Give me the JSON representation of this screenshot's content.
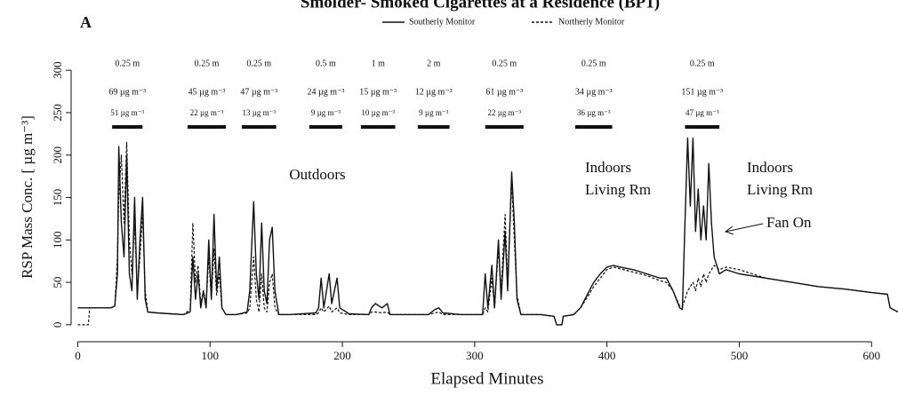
{
  "chart_data": {
    "type": "line",
    "title": "Smolder- Smoked Cigarettes at a Residence (BP1)",
    "panel_label": "A",
    "xlabel": "Elapsed Minutes",
    "ylabel": "RSP Mass Conc. [ µg m⁻³]",
    "xlim": [
      -5,
      620
    ],
    "ylim": [
      -20,
      320
    ],
    "xticks": [
      0,
      100,
      200,
      300,
      400,
      500,
      600
    ],
    "yticks": [
      0,
      50,
      100,
      150,
      200,
      250,
      300
    ],
    "legend": "top",
    "x": [
      0,
      8,
      9,
      25,
      28,
      30,
      31,
      33,
      35,
      37,
      39,
      41,
      43,
      45,
      47,
      49,
      51,
      53,
      60,
      70,
      80,
      85,
      87,
      89,
      91,
      93,
      95,
      97,
      99,
      101,
      103,
      105,
      107,
      109,
      112,
      120,
      128,
      130,
      133,
      135,
      137,
      139,
      141,
      143,
      145,
      147,
      149,
      152,
      160,
      180,
      182,
      184,
      186,
      190,
      192,
      196,
      198,
      205,
      220,
      222,
      225,
      230,
      234,
      236,
      250,
      265,
      270,
      273,
      276,
      290,
      306,
      308,
      310,
      313,
      315,
      318,
      320,
      323,
      325,
      328,
      330,
      332,
      335,
      350,
      360,
      362,
      366,
      367,
      375,
      380,
      385,
      390,
      395,
      400,
      405,
      410,
      420,
      430,
      440,
      445,
      450,
      455,
      457,
      459,
      461,
      463,
      465,
      467,
      469,
      471,
      473,
      475,
      477,
      479,
      481,
      485,
      490,
      500,
      520,
      540,
      560,
      580,
      600,
      612,
      614,
      620
    ],
    "series": [
      {
        "name": "Southerly Monitor",
        "color": "#111111",
        "line_style": "solid",
        "values": [
          20,
          20,
          20,
          20,
          22,
          60,
          210,
          120,
          80,
          200,
          60,
          40,
          150,
          30,
          100,
          150,
          30,
          15,
          14,
          13,
          12,
          15,
          80,
          30,
          60,
          20,
          40,
          20,
          100,
          30,
          130,
          40,
          80,
          20,
          12,
          12,
          15,
          40,
          145,
          60,
          30,
          120,
          40,
          25,
          100,
          115,
          40,
          12,
          12,
          14,
          20,
          55,
          20,
          60,
          25,
          55,
          20,
          13,
          12,
          20,
          25,
          20,
          25,
          12,
          12,
          12,
          18,
          20,
          14,
          12,
          12,
          60,
          20,
          70,
          20,
          100,
          30,
          110,
          40,
          180,
          120,
          30,
          12,
          12,
          10,
          0,
          0,
          10,
          12,
          20,
          35,
          50,
          60,
          68,
          70,
          68,
          65,
          60,
          55,
          55,
          40,
          20,
          18,
          120,
          220,
          140,
          220,
          110,
          160,
          100,
          140,
          100,
          190,
          120,
          80,
          60,
          65,
          60,
          55,
          50,
          45,
          42,
          38,
          36,
          20,
          15
        ]
      },
      {
        "name": "Northerly Monitor",
        "color": "#111111",
        "line_style": "dashed",
        "values": [
          0,
          0,
          20,
          20,
          22,
          80,
          150,
          200,
          120,
          215,
          100,
          60,
          120,
          40,
          80,
          130,
          40,
          15,
          14,
          13,
          12,
          18,
          120,
          50,
          70,
          25,
          40,
          25,
          80,
          30,
          90,
          35,
          60,
          20,
          12,
          12,
          14,
          20,
          80,
          30,
          15,
          60,
          20,
          15,
          50,
          60,
          20,
          12,
          12,
          12,
          14,
          20,
          15,
          22,
          15,
          20,
          14,
          12,
          12,
          15,
          15,
          14,
          15,
          12,
          12,
          12,
          14,
          15,
          12,
          12,
          12,
          20,
          15,
          55,
          20,
          90,
          40,
          130,
          50,
          170,
          100,
          35,
          12,
          12,
          10,
          0,
          0,
          10,
          12,
          20,
          32,
          45,
          55,
          65,
          68,
          66,
          62,
          58,
          52,
          50,
          40,
          22,
          22,
          30,
          40,
          45,
          50,
          40,
          55,
          45,
          60,
          50,
          60,
          65,
          70,
          65,
          68,
          65,
          55,
          50,
          45,
          42,
          38,
          36,
          20,
          15
        ]
      }
    ],
    "exposures": [
      {
        "distance": "0.25 m",
        "source_conc": "69 µg m⁻³",
        "monitor_conc": "51 µg m⁻³",
        "start": 26,
        "end": 49
      },
      {
        "distance": "0.25 m",
        "source_conc": "45 µg m⁻³",
        "monitor_conc": "22 µg m⁻³",
        "start": 83,
        "end": 112
      },
      {
        "distance": "0.25 m",
        "source_conc": "47 µg m⁻³",
        "monitor_conc": "13 µg m⁻³",
        "start": 124,
        "end": 150
      },
      {
        "distance": "0.5 m",
        "source_conc": "24 µg m⁻³",
        "monitor_conc": "9 µg m⁻³",
        "start": 175,
        "end": 200
      },
      {
        "distance": "1 m",
        "source_conc": "15 µg m⁻³",
        "monitor_conc": "10 µg m⁻³",
        "start": 214,
        "end": 240
      },
      {
        "distance": "2 m",
        "source_conc": "12 µg m⁻³",
        "monitor_conc": "9 µg m⁻³",
        "start": 257,
        "end": 281
      },
      {
        "distance": "0.25 m",
        "source_conc": "61 µg m⁻³",
        "monitor_conc": "22 µg m⁻³",
        "start": 308,
        "end": 337
      },
      {
        "distance": "0.25 m",
        "source_conc": "34 µg m⁻³",
        "monitor_conc": "36 µg m⁻³",
        "start": 376,
        "end": 404
      },
      {
        "distance": "0.25 m",
        "source_conc": "151 µg m⁻³",
        "monitor_conc": "47 µg m⁻³",
        "start": 459,
        "end": 485
      }
    ],
    "annotations": [
      "Outdoors",
      "Indoors",
      "Living Rm",
      "Indoors",
      "Living Rm",
      "Fan On"
    ]
  }
}
